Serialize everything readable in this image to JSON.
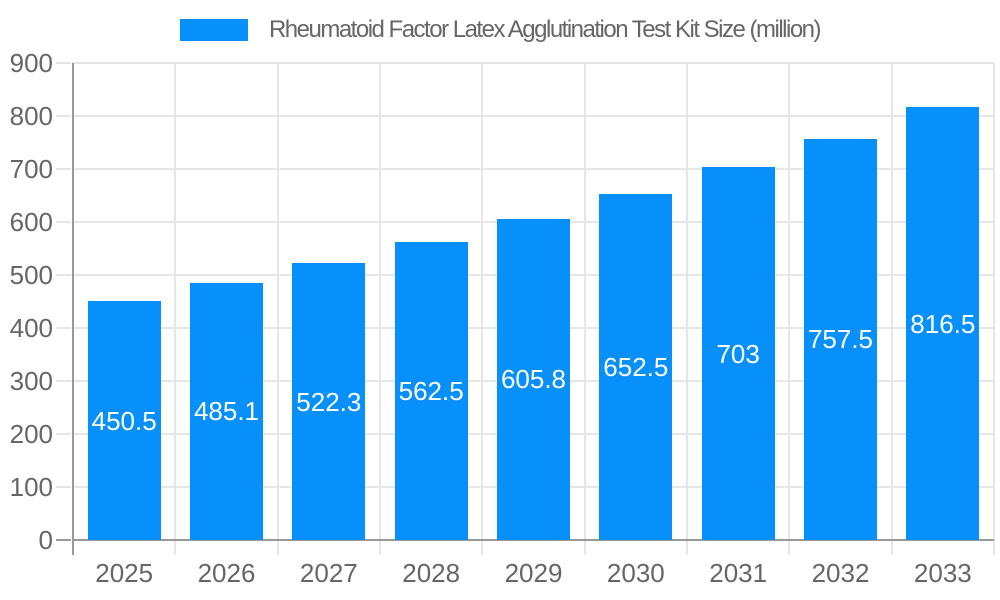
{
  "chart_data": {
    "type": "bar",
    "title": "Rheumatoid Factor Latex Agglutination Test Kit Size (million)",
    "categories": [
      "2025",
      "2026",
      "2027",
      "2028",
      "2029",
      "2030",
      "2031",
      "2032",
      "2033"
    ],
    "values": [
      450.5,
      485.1,
      522.3,
      562.5,
      605.8,
      652.5,
      703,
      757.5,
      816.5
    ],
    "value_labels": [
      "450.5",
      "485.1",
      "522.3",
      "562.5",
      "605.8",
      "652.5",
      "703",
      "757.5",
      "816.5"
    ],
    "ylim": [
      0,
      900
    ],
    "yticks": [
      0,
      100,
      200,
      300,
      400,
      500,
      600,
      700,
      800,
      900
    ],
    "xlabel": "",
    "ylabel": "",
    "grid": true,
    "legend_position": "top-center",
    "colors": {
      "bar": "#0890fa",
      "grid": "#e6e6e6",
      "axis": "#999999",
      "tick_label": "#666666",
      "title": "#666666",
      "bar_label": "#ffffff",
      "background": "#ffffff"
    }
  }
}
